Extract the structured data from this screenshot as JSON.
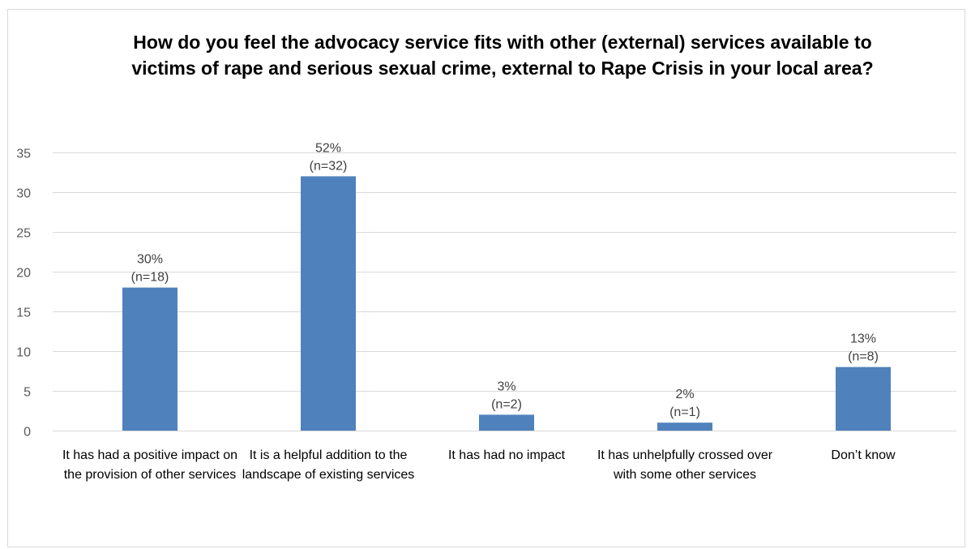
{
  "chart_data": {
    "type": "bar",
    "title": "How do you feel the advocacy service fits with other (external) services available to victims of rape and serious sexual crime, external to Rape Crisis in your local area?",
    "xlabel": "",
    "ylabel": "",
    "categories": [
      "It has had a positive impact on the provision of other services",
      "It is a helpful addition to the landscape of existing services",
      "It has had no impact",
      "It has unhelpfully crossed over with some other services",
      "Don’t know"
    ],
    "values": [
      18,
      32,
      2,
      1,
      8
    ],
    "data_labels": [
      [
        "30%",
        "(n=18)"
      ],
      [
        "52%",
        "(n=32)"
      ],
      [
        "3%",
        "(n=2)"
      ],
      [
        "2%",
        "(n=1)"
      ],
      [
        "13%",
        "(n=8)"
      ]
    ],
    "ylim": [
      0,
      35
    ],
    "yticks": [
      0,
      5,
      10,
      15,
      20,
      25,
      30,
      35
    ],
    "grid": true,
    "legend": "none",
    "bar_color": "#4f81bd",
    "grid_color": "#d9d9d9"
  }
}
